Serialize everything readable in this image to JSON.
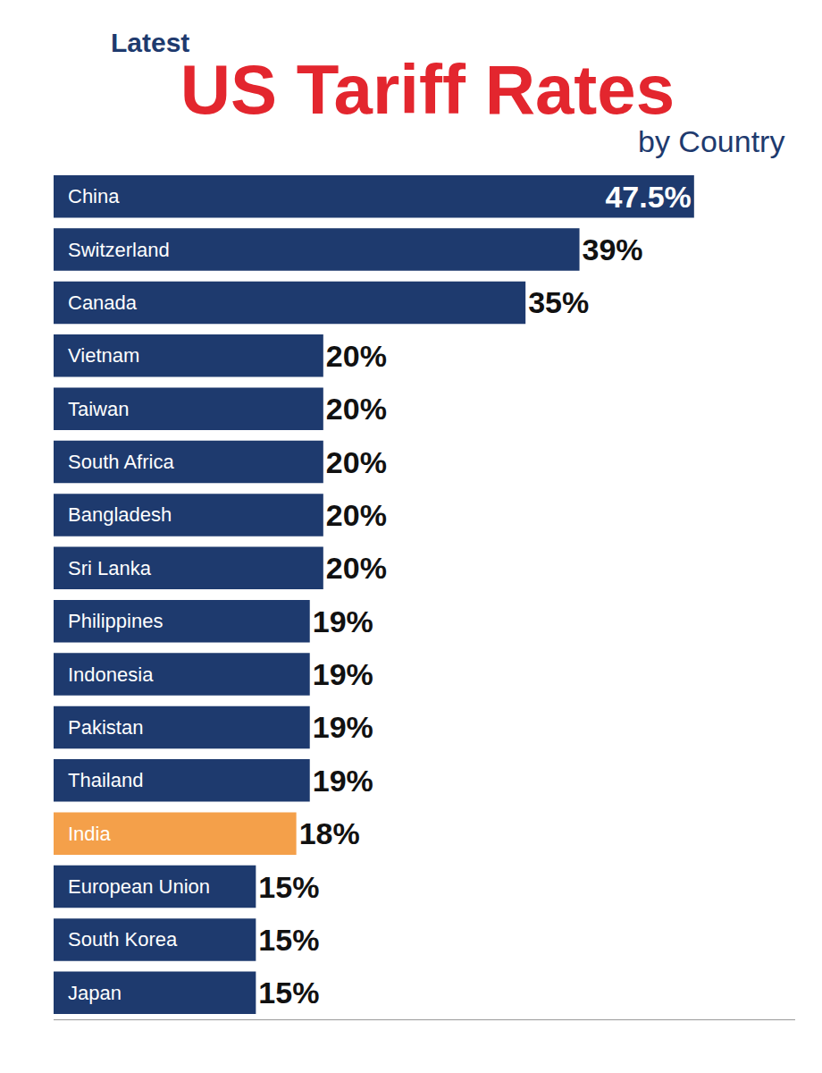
{
  "chart_data": {
    "type": "bar",
    "orientation": "horizontal",
    "title": "US Tariff Rates",
    "subtitle": "by Country",
    "annotations": [
      "Latest"
    ],
    "categories": [
      "China",
      "Switzerland",
      "Canada",
      "Vietnam",
      "Taiwan",
      "South Africa",
      "Bangladesh",
      "Sri Lanka",
      "Philippines",
      "Indonesia",
      "Pakistan",
      "Thailand",
      "India",
      "European Union",
      "South Korea",
      "Japan"
    ],
    "values": [
      47.5,
      39,
      35,
      20,
      20,
      20,
      20,
      20,
      19,
      19,
      19,
      19,
      18,
      15,
      15,
      15
    ],
    "value_labels": [
      "47.5%",
      "39%",
      "35%",
      "20%",
      "20%",
      "20%",
      "20%",
      "20%",
      "19%",
      "19%",
      "19%",
      "19%",
      "18%",
      "15%",
      "15%",
      "15%"
    ],
    "colors": [
      "#1e3a6e",
      "#1e3a6e",
      "#1e3a6e",
      "#1e3a6e",
      "#1e3a6e",
      "#1e3a6e",
      "#1e3a6e",
      "#1e3a6e",
      "#1e3a6e",
      "#1e3a6e",
      "#1e3a6e",
      "#1e3a6e",
      "#f4a04a",
      "#1e3a6e",
      "#1e3a6e",
      "#1e3a6e"
    ],
    "data_labels": true,
    "tick_labels": false,
    "grid": false,
    "xlim": [
      0,
      55
    ],
    "xticks": []
  }
}
